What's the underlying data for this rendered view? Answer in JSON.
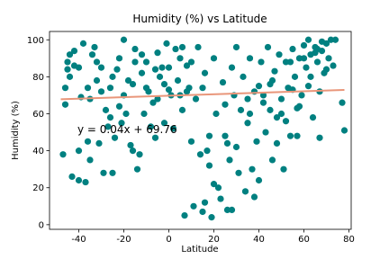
{
  "chart_data": {
    "type": "scatter",
    "title": "Humidity (%) vs Latitude",
    "x_label": "Latitude",
    "y_label": "Humidity (%)",
    "color": "#008080",
    "x": [
      -47,
      -46,
      -46,
      -45,
      -45,
      -44,
      -43,
      -42,
      -42,
      -40,
      -40,
      -39,
      -38,
      -37,
      -36,
      -35,
      -34,
      -33,
      -32,
      -31,
      -30,
      -29,
      -28,
      -27,
      -26,
      -25,
      -24,
      -23,
      -22,
      -21,
      -20,
      -20,
      -19,
      -18,
      -17,
      -16,
      -15,
      -14,
      -13,
      -12,
      -11,
      -10,
      -9,
      -8,
      -7,
      -6,
      -5,
      -4,
      -3,
      -2,
      -1,
      0,
      1,
      2,
      3,
      4,
      5,
      6,
      7,
      8,
      9,
      10,
      11,
      12,
      13,
      14,
      15,
      16,
      17,
      18,
      19,
      20,
      21,
      22,
      23,
      24,
      25,
      26,
      27,
      28,
      29,
      30,
      31,
      32,
      33,
      34,
      35,
      36,
      37,
      38,
      39,
      40,
      41,
      42,
      43,
      44,
      45,
      46,
      47,
      48,
      49,
      50,
      51,
      52,
      53,
      54,
      55,
      56,
      57,
      58,
      59,
      60,
      61,
      62,
      63,
      64,
      65,
      66,
      67,
      68,
      69,
      70,
      71,
      72,
      73,
      74,
      77,
      78,
      62,
      65,
      68,
      55,
      50,
      45,
      40,
      35,
      30,
      25,
      20,
      15,
      10,
      5,
      0,
      -5,
      -10,
      -15,
      -25,
      -30,
      -35,
      -40,
      -44,
      58,
      48,
      38,
      28,
      18,
      8,
      -2,
      -12,
      -22,
      -32,
      42,
      52,
      57,
      67,
      63,
      60,
      70,
      66,
      54,
      46,
      36,
      26,
      16,
      6,
      -6,
      -16,
      -26,
      -36
    ],
    "values": [
      38,
      65,
      74,
      84,
      88,
      92,
      26,
      86,
      94,
      24,
      40,
      69,
      98,
      23,
      45,
      35,
      92,
      96,
      78,
      44,
      85,
      28,
      62,
      53,
      74,
      28,
      47,
      84,
      90,
      55,
      100,
      70,
      60,
      78,
      43,
      40,
      95,
      30,
      38,
      82,
      60,
      88,
      72,
      53,
      66,
      47,
      93,
      80,
      85,
      76,
      98,
      85,
      70,
      52,
      95,
      78,
      90,
      62,
      5,
      86,
      74,
      45,
      10,
      68,
      96,
      38,
      7,
      82,
      40,
      32,
      4,
      90,
      60,
      20,
      14,
      77,
      48,
      8,
      35,
      85,
      70,
      96,
      28,
      62,
      80,
      18,
      55,
      90,
      30,
      72,
      45,
      24,
      88,
      66,
      50,
      96,
      76,
      35,
      83,
      58,
      92,
      68,
      30,
      88,
      74,
      48,
      95,
      80,
      63,
      90,
      70,
      97,
      85,
      75,
      92,
      58,
      96,
      88,
      72,
      94,
      82,
      98,
      90,
      100,
      86,
      100,
      66,
      51,
      100,
      93,
      99,
      73,
      60,
      62,
      75,
      68,
      42,
      65,
      22,
      74,
      88,
      70,
      73,
      68,
      74,
      88,
      80,
      72,
      68,
      85,
      80,
      64,
      44,
      15,
      8,
      48,
      72,
      55,
      92,
      64,
      88,
      70,
      56,
      48,
      47,
      80,
      90,
      84,
      95,
      88,
      78,
      60,
      44,
      12,
      96,
      84,
      76,
      58,
      74
    ],
    "trendline": {
      "x": [
        -48,
        78
      ],
      "values": [
        67.84,
        72.88
      ],
      "color": "#e9967a"
    },
    "annotation": "y = 0.04x + 69.76",
    "xlim": [
      -53,
      81
    ],
    "ylim": [
      -2.5,
      104.5
    ],
    "xticks": [
      -40,
      -20,
      0,
      20,
      40,
      60,
      80
    ],
    "yticks": [
      0,
      20,
      40,
      60,
      80,
      100
    ],
    "grid": false
  }
}
